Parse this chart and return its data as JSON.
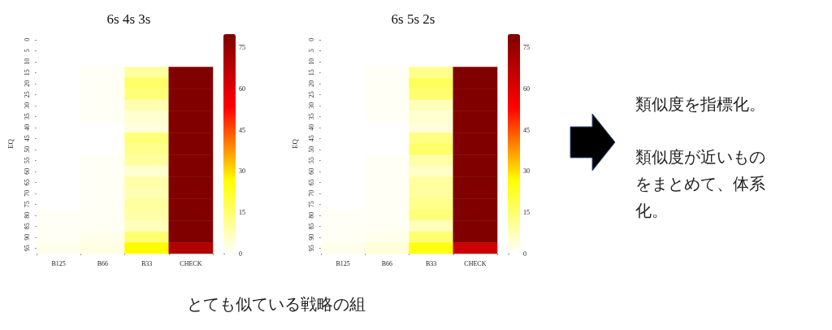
{
  "chart_data": [
    {
      "type": "heatmap",
      "title": "6s 4s 3s",
      "ylabel": "EQ",
      "categories": [
        "B125",
        "B66",
        "B33",
        "CHECK"
      ],
      "y_categories": [
        "0",
        "5",
        "10",
        "15",
        "20",
        "25",
        "30",
        "35",
        "40",
        "45",
        "50",
        "55",
        "60",
        "65",
        "70",
        "75",
        "80",
        "85",
        "90",
        "95"
      ],
      "cells": [
        [
          null,
          null,
          null,
          null
        ],
        [
          null,
          null,
          null,
          null
        ],
        [
          null,
          null,
          null,
          null
        ],
        [
          0,
          1,
          10,
          80
        ],
        [
          0,
          1,
          16,
          80
        ],
        [
          0,
          1,
          14,
          80
        ],
        [
          0,
          1,
          8,
          80
        ],
        [
          0,
          1,
          5,
          80
        ],
        [
          0,
          0,
          4,
          80
        ],
        [
          0,
          0,
          14,
          80
        ],
        [
          0,
          0,
          12,
          80
        ],
        [
          0,
          1,
          10,
          80
        ],
        [
          0,
          1,
          5,
          80
        ],
        [
          0,
          1,
          9,
          80
        ],
        [
          0,
          1,
          8,
          80
        ],
        [
          0,
          1,
          10,
          80
        ],
        [
          1,
          1,
          9,
          80
        ],
        [
          1,
          1,
          7,
          80
        ],
        [
          1,
          2,
          15,
          80
        ],
        [
          2,
          3,
          27,
          70
        ]
      ],
      "clim": [
        0,
        80
      ],
      "cticks": [
        0,
        15,
        30,
        45,
        60,
        75
      ],
      "annotations": [
        "とても似ている戦略の組"
      ]
    },
    {
      "type": "heatmap",
      "title": "6s 5s 2s",
      "ylabel": "EQ",
      "categories": [
        "B125",
        "B66",
        "B33",
        "CHECK"
      ],
      "y_categories": [
        "0",
        "5",
        "10",
        "15",
        "20",
        "25",
        "30",
        "35",
        "40",
        "45",
        "50",
        "55",
        "60",
        "65",
        "70",
        "75",
        "80",
        "85",
        "90",
        "95"
      ],
      "cells": [
        [
          null,
          null,
          null,
          null
        ],
        [
          null,
          null,
          null,
          null
        ],
        [
          null,
          null,
          null,
          null
        ],
        [
          0,
          1,
          12,
          80
        ],
        [
          0,
          1,
          17,
          80
        ],
        [
          0,
          1,
          15,
          80
        ],
        [
          0,
          1,
          7,
          80
        ],
        [
          0,
          1,
          5,
          80
        ],
        [
          0,
          0,
          4,
          80
        ],
        [
          0,
          0,
          13,
          80
        ],
        [
          0,
          0,
          16,
          80
        ],
        [
          0,
          1,
          9,
          80
        ],
        [
          0,
          1,
          6,
          80
        ],
        [
          0,
          1,
          10,
          80
        ],
        [
          0,
          1,
          10,
          80
        ],
        [
          0,
          1,
          12,
          80
        ],
        [
          1,
          1,
          14,
          80
        ],
        [
          1,
          1,
          7,
          80
        ],
        [
          1,
          2,
          15,
          80
        ],
        [
          2,
          4,
          25,
          64
        ]
      ],
      "clim": [
        0,
        80
      ],
      "cticks": [
        0,
        15,
        30,
        45,
        60,
        75
      ]
    },
    {
      "type": "other",
      "annotations": [
        "類似度を指標化。",
        "類似度が近いものをまとめて、体系化。"
      ]
    }
  ]
}
